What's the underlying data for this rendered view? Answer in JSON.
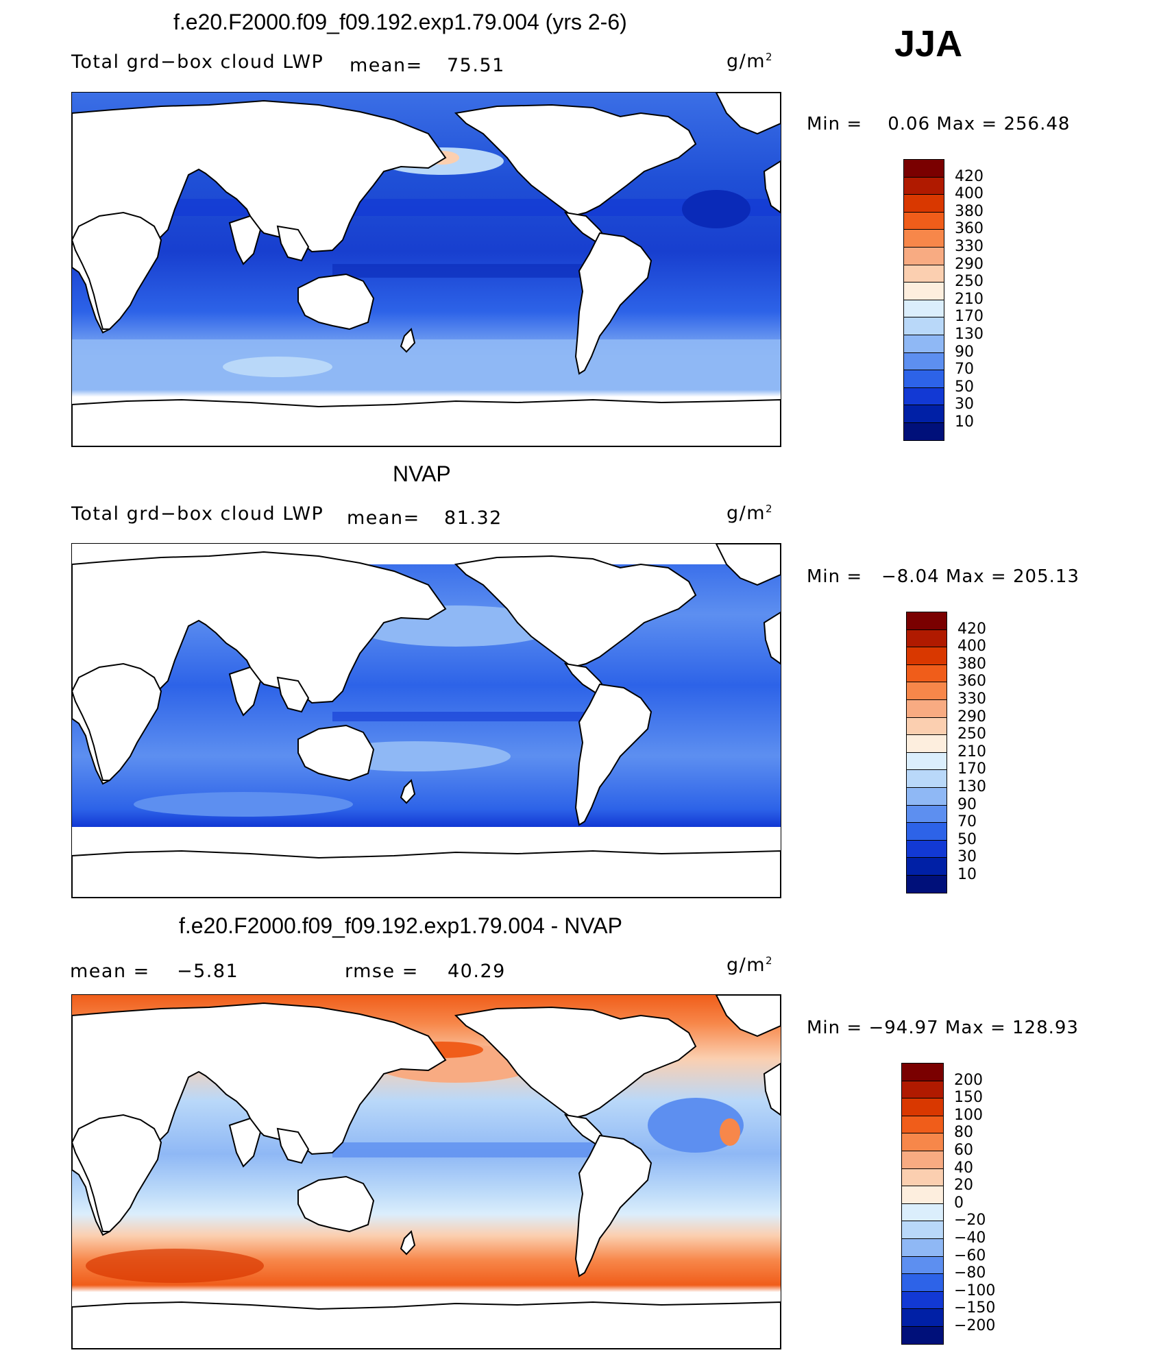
{
  "season": "JJA",
  "units": "g/m",
  "units_sup": "2",
  "panels": [
    {
      "title": "f.e20.F2000.f09_f09.192.exp1.79.004 (yrs 2-6)",
      "left_label": "Total grd−box cloud LWP",
      "mean_label": "mean=",
      "mean_value": "75.51",
      "minmax_text": "Min =    0.06 Max = 256.48"
    },
    {
      "title": "NVAP",
      "left_label": "Total grd−box cloud LWP",
      "mean_label": "mean=",
      "mean_value": "81.32",
      "minmax_text": "Min =   −8.04 Max = 205.13"
    },
    {
      "title": "f.e20.F2000.f09_f09.192.exp1.79.004 - NVAP",
      "mean_label": "mean =",
      "mean_value": "−5.81",
      "rmse_label": "rmse =",
      "rmse_value": "40.29",
      "minmax_text": "Min = −94.97 Max = 128.93"
    }
  ],
  "colorbars": {
    "absolute": {
      "labels": [
        "420",
        "400",
        "380",
        "360",
        "330",
        "290",
        "250",
        "210",
        "170",
        "130",
        "90",
        "70",
        "50",
        "30",
        "10"
      ],
      "colors": [
        "#7a0000",
        "#b01a00",
        "#d93800",
        "#f05d1a",
        "#f7874a",
        "#f8ab82",
        "#fbcfb0",
        "#fdeede",
        "#dbeefc",
        "#b9d8f9",
        "#8fb8f5",
        "#5d8ff0",
        "#2d63e8",
        "#1239d4",
        "#0020a6",
        "#00107a"
      ]
    },
    "difference": {
      "labels": [
        "200",
        "150",
        "100",
        "80",
        "60",
        "40",
        "20",
        "0",
        "−20",
        "−40",
        "−60",
        "−80",
        "−100",
        "−150",
        "−200"
      ],
      "colors": [
        "#7a0000",
        "#b01a00",
        "#d93800",
        "#f05d1a",
        "#f7874a",
        "#f8ab82",
        "#fbcfb0",
        "#fdeede",
        "#dbeefc",
        "#b9d8f9",
        "#8fb8f5",
        "#5d8ff0",
        "#2d63e8",
        "#1239d4",
        "#0020a6",
        "#00107a"
      ]
    }
  }
}
